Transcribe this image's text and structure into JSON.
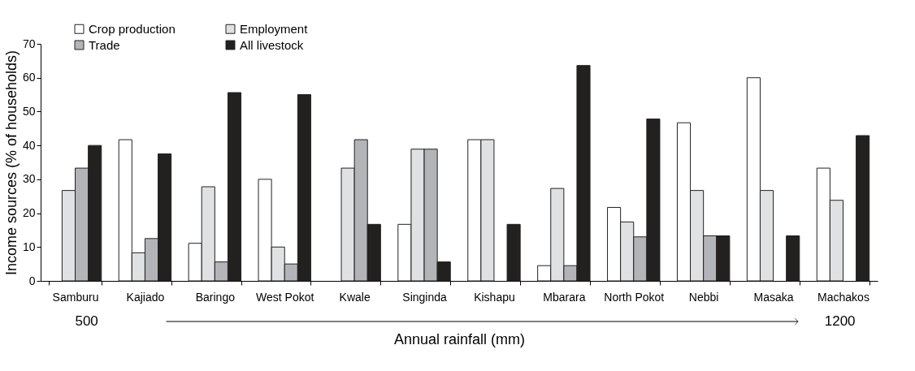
{
  "chart_data": {
    "type": "bar",
    "xlabel": "Annual rainfall (mm)",
    "ylabel": "Income sources (% of households)",
    "categories": [
      "Samburu",
      "Kajiado",
      "Baringo",
      "West Pokot",
      "Kwale",
      "Singinda",
      "Kishapu",
      "Mbarara",
      "North Pokot",
      "Nebbi",
      "Masaka",
      "Machakos"
    ],
    "series": [
      {
        "name": "Crop production",
        "color": "#ffffff",
        "values": [
          null,
          41.7,
          11.1,
          30,
          null,
          16.7,
          41.7,
          4.5,
          21.7,
          46.7,
          60,
          33.3
        ]
      },
      {
        "name": "Employment",
        "color": "#e0e1e3",
        "values": [
          26.7,
          8.3,
          27.8,
          10,
          33.3,
          38.9,
          41.7,
          27.3,
          17.4,
          26.7,
          26.7,
          23.8
        ]
      },
      {
        "name": "Trade",
        "color": "#b3b4b8",
        "values": [
          33.3,
          12.5,
          5.6,
          5,
          41.7,
          38.9,
          null,
          4.5,
          13,
          13.3,
          null,
          null
        ]
      },
      {
        "name": "All livestock",
        "color": "#222120",
        "values": [
          40,
          37.5,
          55.6,
          55,
          16.7,
          5.6,
          16.7,
          63.6,
          47.8,
          13.3,
          13.3,
          42.9
        ]
      }
    ],
    "ylim": [
      0,
      70
    ],
    "yticks": [
      0,
      10,
      20,
      30,
      40,
      50,
      60,
      70
    ],
    "grid": false,
    "legend": "top left",
    "annotations": [
      "500",
      "1200"
    ]
  }
}
